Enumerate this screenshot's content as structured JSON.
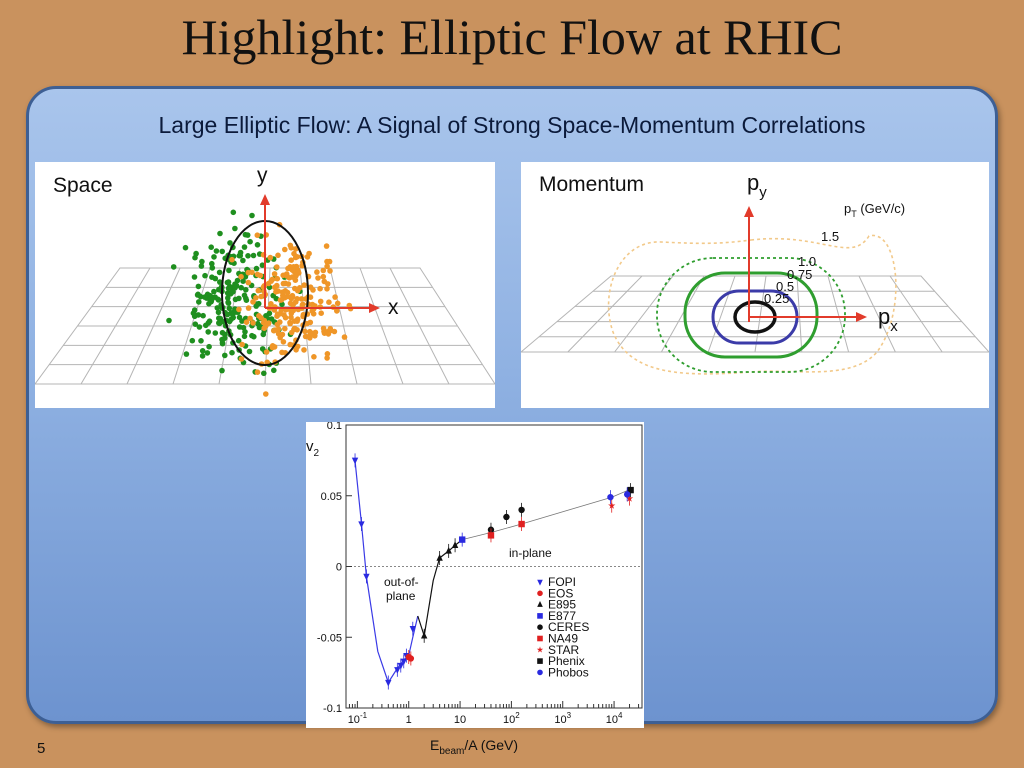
{
  "slide": {
    "title": "Highlight: Elliptic Flow at RHIC",
    "subtitle": "Large Elliptic Flow: A Signal of Strong Space-Momentum Correlations",
    "number": "5"
  },
  "space_panel": {
    "label": "Space",
    "axis_y": "y",
    "axis_x": "x",
    "colors": {
      "green": "#1f8f1f",
      "orange": "#ef9628",
      "axis": "#e23b2b"
    }
  },
  "momentum_panel": {
    "label": "Momentum",
    "axis_y_main": "p",
    "axis_y_sub": "y",
    "axis_x_main": "p",
    "axis_x_sub": "x",
    "legend_main": "p",
    "legend_sub": "T",
    "legend_unit": " (GeV/c)",
    "contour_labels": [
      "1.5",
      "1.0",
      "0.75",
      "0.5",
      "0.25"
    ],
    "colors": {
      "c15": "#f2c98a",
      "c10": "#2f9e2f",
      "c075": "#2f9e2f",
      "c05": "#3b3ba8",
      "c025": "#111111"
    }
  },
  "chart_data": {
    "type": "scatter",
    "x_scale": "log",
    "ylabel_main": "v",
    "ylabel_sub": "2",
    "xlabel_pre": "E",
    "xlabel_sub": "beam",
    "xlabel_post": "/A (GeV)",
    "ylim": [
      -0.1,
      0.1
    ],
    "xlim": [
      0.06,
      35000
    ],
    "y_ticks": [
      "0.1",
      "0.05",
      "0",
      "-0.05",
      "-0.1"
    ],
    "x_ticks": [
      {
        "value": 0.1,
        "base": "10",
        "exp": "-1"
      },
      {
        "value": 1,
        "base": "1",
        "exp": ""
      },
      {
        "value": 10,
        "base": "10",
        "exp": ""
      },
      {
        "value": 100,
        "base": "10",
        "exp": "2"
      },
      {
        "value": 1000,
        "base": "10",
        "exp": "3"
      },
      {
        "value": 10000,
        "base": "10",
        "exp": "4"
      }
    ],
    "annotations": {
      "in_plane": "in-plane",
      "out_of_plane_1": "out-of-",
      "out_of_plane_2": "plane"
    },
    "series": [
      {
        "name": "FOPI",
        "marker": "triangle-down",
        "color": "#2a2ae0",
        "x": [
          0.09,
          0.12,
          0.15,
          0.4,
          0.6,
          0.7,
          0.8,
          0.9,
          1.2
        ],
        "y": [
          0.075,
          0.03,
          -0.007,
          -0.082,
          -0.073,
          -0.07,
          -0.067,
          -0.063,
          -0.044
        ]
      },
      {
        "name": "EOS",
        "marker": "circle",
        "color": "#e02020",
        "x": [
          1.0,
          1.1
        ],
        "y": [
          -0.064,
          -0.065
        ]
      },
      {
        "name": "E895",
        "marker": "triangle-up",
        "color": "#111111",
        "x": [
          2,
          4,
          6,
          8
        ],
        "y": [
          -0.049,
          0.006,
          0.011,
          0.015
        ]
      },
      {
        "name": "E877",
        "marker": "square",
        "color": "#2a2ae0",
        "x": [
          11
        ],
        "y": [
          0.019
        ]
      },
      {
        "name": "CERES",
        "marker": "circle",
        "color": "#111111",
        "x": [
          40,
          80,
          158
        ],
        "y": [
          0.026,
          0.035,
          0.04
        ]
      },
      {
        "name": "NA49",
        "marker": "square",
        "color": "#e02020",
        "x": [
          40,
          158
        ],
        "y": [
          0.022,
          0.03
        ]
      },
      {
        "name": "STAR",
        "marker": "star",
        "color": "#e02020",
        "x": [
          9000,
          20000
        ],
        "y": [
          0.043,
          0.048
        ]
      },
      {
        "name": "Phenix",
        "marker": "square",
        "color": "#111111",
        "x": [
          21000
        ],
        "y": [
          0.054
        ]
      },
      {
        "name": "Phobos",
        "marker": "circle",
        "color": "#2a2ae0",
        "x": [
          8500,
          18000
        ],
        "y": [
          0.049,
          0.051
        ]
      }
    ],
    "trend_low": {
      "color": "#3a3ae6",
      "x": [
        0.09,
        0.12,
        0.15,
        0.25,
        0.4,
        0.6,
        0.8,
        1.0,
        1.2,
        1.5
      ],
      "y": [
        0.075,
        0.03,
        -0.007,
        -0.06,
        -0.082,
        -0.072,
        -0.066,
        -0.063,
        -0.05,
        -0.035
      ]
    },
    "trend_mid": {
      "color": "#111111",
      "x": [
        1.5,
        2,
        3,
        4,
        6,
        8,
        11
      ],
      "y": [
        -0.035,
        -0.049,
        -0.01,
        0.006,
        0.011,
        0.015,
        0.019
      ]
    },
    "trend_high": {
      "color": "#777777",
      "x": [
        11,
        40,
        158,
        9000,
        22000
      ],
      "y": [
        0.019,
        0.024,
        0.03,
        0.049,
        0.055
      ]
    }
  }
}
